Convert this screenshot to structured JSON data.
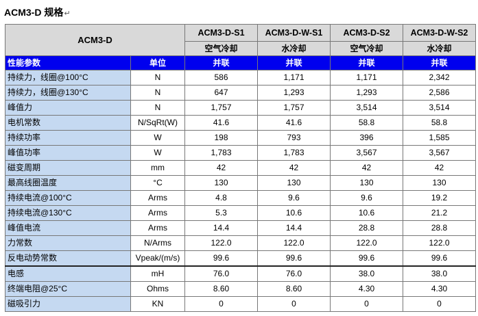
{
  "title": "ACM3-D  规格",
  "paragraph_mark": "↵",
  "corner_label": "ACM3-D",
  "models": [
    {
      "name": "ACM3-D-S1",
      "cooling": "空气冷却"
    },
    {
      "name": "ACM3-D-W-S1",
      "cooling": "水冷却"
    },
    {
      "name": "ACM3-D-S2",
      "cooling": "空气冷却"
    },
    {
      "name": "ACM3-D-W-S2",
      "cooling": "水冷却"
    }
  ],
  "section_header": {
    "param": "性能参数",
    "unit": "单位",
    "values": [
      "并联",
      "并联",
      "并联",
      "并联"
    ]
  },
  "rows": [
    {
      "param": "持续力，线圈@100°C",
      "unit": "N",
      "values": [
        "586",
        "1,171",
        "1,171",
        "2,342"
      ]
    },
    {
      "param": "持续力，线圈@130°C",
      "unit": "N",
      "values": [
        "647",
        "1,293",
        "1,293",
        "2,586"
      ]
    },
    {
      "param": "峰值力",
      "unit": "N",
      "values": [
        "1,757",
        "1,757",
        "3,514",
        "3,514"
      ]
    },
    {
      "param": "电机常数",
      "unit": "N/SqRt(W)",
      "values": [
        "41.6",
        "41.6",
        "58.8",
        "58.8"
      ]
    },
    {
      "param": "持续功率",
      "unit": "W",
      "values": [
        "198",
        "793",
        "396",
        "1,585"
      ]
    },
    {
      "param": "峰值功率",
      "unit": "W",
      "values": [
        "1,783",
        "1,783",
        "3,567",
        "3,567"
      ]
    },
    {
      "param": "磁变周期",
      "unit": "mm",
      "values": [
        "42",
        "42",
        "42",
        "42"
      ]
    },
    {
      "param": "最高线圈温度",
      "unit": "°C",
      "values": [
        "130",
        "130",
        "130",
        "130"
      ]
    },
    {
      "param": "持续电流@100°C",
      "unit": "Arms",
      "values": [
        "4.8",
        "9.6",
        "9.6",
        "19.2"
      ]
    },
    {
      "param": "持续电流@130°C",
      "unit": "Arms",
      "values": [
        "5.3",
        "10.6",
        "10.6",
        "21.2"
      ]
    },
    {
      "param": "峰值电流",
      "unit": "Arms",
      "values": [
        "14.4",
        "14.4",
        "28.8",
        "28.8"
      ]
    },
    {
      "param": "力常数",
      "unit": "N/Arms",
      "values": [
        "122.0",
        "122.0",
        "122.0",
        "122.0"
      ]
    },
    {
      "param": "反电动势常数",
      "unit": "Vpeak/(m/s)",
      "values": [
        "99.6",
        "99.6",
        "99.6",
        "99.6"
      ]
    },
    {
      "param": "电感",
      "unit": "mH",
      "values": [
        "76.0",
        "76.0",
        "38.0",
        "38.0"
      ],
      "thick_top": true
    },
    {
      "param": "终端电阻@25°C",
      "unit": "Ohms",
      "values": [
        "8.60",
        "8.60",
        "4.30",
        "4.30"
      ]
    },
    {
      "param": "磁吸引力",
      "unit": "KN",
      "values": [
        "0",
        "0",
        "0",
        "0"
      ]
    }
  ],
  "colors": {
    "section_bg": "#0000ee",
    "param_bg": "#c5d9f1",
    "header_bg": "#d9d9d9"
  }
}
